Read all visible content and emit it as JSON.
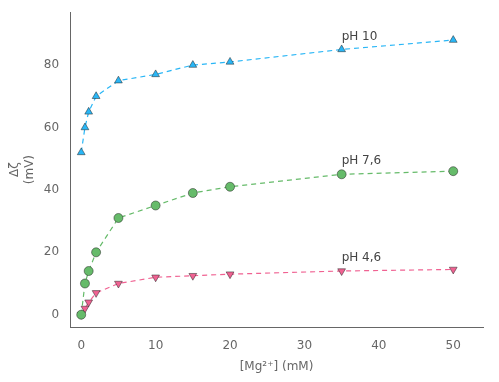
{
  "chart_data": {
    "type": "line",
    "xlabel": "[Mg²⁺] (mM)",
    "ylabel": "Δζ\n(mV)",
    "x": [
      0,
      0.5,
      1,
      2,
      5,
      10,
      15,
      20,
      35,
      50
    ],
    "series": [
      {
        "name": "pH 10",
        "color": "#29b6f6",
        "marker": "triangle-up",
        "line_style": "dashed",
        "values": [
          52,
          60,
          65,
          70,
          75,
          77,
          80,
          81,
          85,
          88
        ]
      },
      {
        "name": "pH 7,6",
        "color": "#66bb6a",
        "marker": "circle",
        "line_style": "dashed",
        "values": [
          0,
          10,
          14,
          20,
          31,
          35,
          39,
          41,
          45,
          46
        ]
      },
      {
        "name": "pH 4,6",
        "color": "#f06292",
        "marker": "triangle-down",
        "line_style": "dashed",
        "values": [
          0,
          2,
          4,
          7,
          10,
          12,
          12.5,
          13,
          14,
          14.5
        ]
      }
    ],
    "xlim": [
      -1.5,
      54
    ],
    "xticks": [
      0,
      10,
      20,
      30,
      40,
      50
    ],
    "ylim": [
      -4,
      97
    ],
    "yticks": [
      0,
      20,
      40,
      60,
      80
    ],
    "grid": false
  }
}
